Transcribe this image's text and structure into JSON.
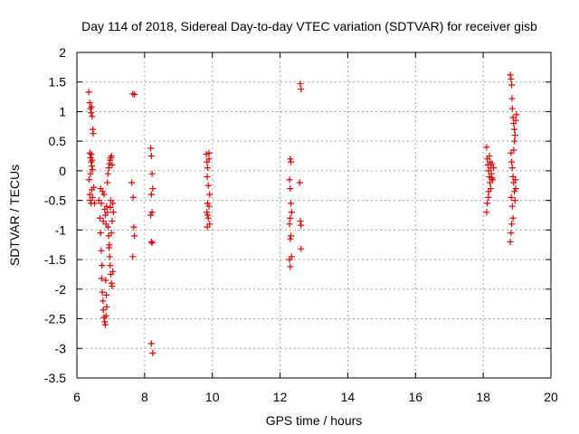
{
  "chart_data": {
    "type": "scatter",
    "title": "Day 114 of 2018, Sidereal Day-to-day VTEC variation (SDTVAR) for receiver gisb",
    "xlabel": "GPS time / hours",
    "ylabel": "SDTVAR / TECUs",
    "xlim": [
      6,
      20
    ],
    "ylim": [
      -3.5,
      2
    ],
    "xticks": [
      "6",
      "8",
      "10",
      "12",
      "14",
      "16",
      "18",
      "20"
    ],
    "yticks": [
      "-3.5",
      "-3",
      "-2.5",
      "-2",
      "-1.5",
      "-1",
      "-0.5",
      "0",
      "0.5",
      "1",
      "1.5",
      "2"
    ],
    "grid": true,
    "marker": "+",
    "series": [
      {
        "name": "SDTVAR",
        "color": "#e00000",
        "points": [
          [
            6.35,
            1.33
          ],
          [
            6.38,
            1.15
          ],
          [
            6.4,
            1.05
          ],
          [
            6.42,
            0.98
          ],
          [
            6.45,
            0.92
          ],
          [
            6.43,
            1.08
          ],
          [
            6.47,
            0.7
          ],
          [
            6.48,
            0.63
          ],
          [
            6.38,
            0.3
          ],
          [
            6.4,
            0.22
          ],
          [
            6.42,
            0.15
          ],
          [
            6.44,
            0.08
          ],
          [
            6.46,
            0.02
          ],
          [
            6.4,
            -0.05
          ],
          [
            6.43,
            0.28
          ],
          [
            6.45,
            0.18
          ],
          [
            6.36,
            -0.15
          ],
          [
            6.38,
            -0.4
          ],
          [
            6.4,
            -0.5
          ],
          [
            6.42,
            -0.55
          ],
          [
            6.44,
            -0.32
          ],
          [
            6.46,
            -0.45
          ],
          [
            6.5,
            -0.28
          ],
          [
            6.52,
            -0.55
          ],
          [
            6.65,
            -0.5
          ],
          [
            6.68,
            -0.8
          ],
          [
            6.7,
            -1.05
          ],
          [
            6.72,
            -1.35
          ],
          [
            6.74,
            -1.6
          ],
          [
            6.73,
            -1.82
          ],
          [
            6.75,
            -2.05
          ],
          [
            6.77,
            -2.2
          ],
          [
            6.78,
            -2.35
          ],
          [
            6.8,
            -2.48
          ],
          [
            6.82,
            -2.55
          ],
          [
            6.84,
            -2.6
          ],
          [
            6.86,
            -2.45
          ],
          [
            6.88,
            -2.3
          ],
          [
            6.7,
            -0.3
          ],
          [
            6.72,
            -0.55
          ],
          [
            6.8,
            -0.4
          ],
          [
            6.82,
            -0.65
          ],
          [
            6.84,
            -0.75
          ],
          [
            6.86,
            -0.9
          ],
          [
            6.88,
            -0.6
          ],
          [
            6.9,
            -0.7
          ],
          [
            6.92,
            -0.95
          ],
          [
            6.94,
            -1.1
          ],
          [
            6.96,
            -1.25
          ],
          [
            6.98,
            -1.6
          ],
          [
            7.0,
            -1.75
          ],
          [
            7.02,
            -1.9
          ],
          [
            7.04,
            -1.95
          ],
          [
            7.06,
            -1.7
          ],
          [
            6.9,
            -0.2
          ],
          [
            6.92,
            -0.05
          ],
          [
            6.94,
            0.05
          ],
          [
            6.96,
            0.12
          ],
          [
            6.98,
            0.18
          ],
          [
            7.0,
            0.22
          ],
          [
            7.02,
            0.25
          ],
          [
            7.04,
            0.1
          ],
          [
            7.06,
            -0.55
          ],
          [
            7.08,
            -0.7
          ],
          [
            7.04,
            -0.85
          ],
          [
            7.02,
            -1.05
          ],
          [
            6.95,
            -1.3
          ],
          [
            6.97,
            -1.45
          ],
          [
            7.0,
            -0.5
          ],
          [
            6.99,
            -0.62
          ],
          [
            6.76,
            -0.35
          ],
          [
            6.78,
            -0.85
          ],
          [
            6.85,
            -1.85
          ],
          [
            6.87,
            -2.1
          ],
          [
            7.65,
            1.3
          ],
          [
            7.7,
            1.29
          ],
          [
            7.62,
            -0.2
          ],
          [
            7.66,
            -0.45
          ],
          [
            7.68,
            -0.95
          ],
          [
            7.7,
            -1.1
          ],
          [
            7.65,
            -1.45
          ],
          [
            8.18,
            0.38
          ],
          [
            8.2,
            0.25
          ],
          [
            8.22,
            -0.05
          ],
          [
            8.24,
            -0.3
          ],
          [
            8.2,
            -0.4
          ],
          [
            8.22,
            -0.7
          ],
          [
            8.18,
            -0.75
          ],
          [
            8.2,
            -1.2
          ],
          [
            8.22,
            -1.22
          ],
          [
            8.2,
            -2.92
          ],
          [
            8.24,
            -3.08
          ],
          [
            9.82,
            0.28
          ],
          [
            9.84,
            0.15
          ],
          [
            9.86,
            0.05
          ],
          [
            9.85,
            -0.1
          ],
          [
            9.88,
            -0.25
          ],
          [
            9.9,
            0.3
          ],
          [
            9.92,
            -0.4
          ],
          [
            9.86,
            -0.55
          ],
          [
            9.84,
            -0.7
          ],
          [
            9.88,
            -0.8
          ],
          [
            9.9,
            -0.6
          ],
          [
            9.92,
            -0.9
          ],
          [
            9.86,
            -0.75
          ],
          [
            9.9,
            0.2
          ],
          [
            9.85,
            -0.95
          ],
          [
            12.3,
            0.2
          ],
          [
            12.32,
            0.15
          ],
          [
            12.28,
            -0.15
          ],
          [
            12.3,
            -0.3
          ],
          [
            12.32,
            -0.55
          ],
          [
            12.34,
            -0.7
          ],
          [
            12.3,
            -0.8
          ],
          [
            12.28,
            -0.9
          ],
          [
            12.32,
            -1.1
          ],
          [
            12.3,
            -1.15
          ],
          [
            12.34,
            -1.45
          ],
          [
            12.28,
            -1.5
          ],
          [
            12.3,
            -1.62
          ],
          [
            12.6,
            1.47
          ],
          [
            12.62,
            1.38
          ],
          [
            12.58,
            -0.2
          ],
          [
            12.6,
            -0.85
          ],
          [
            12.62,
            -0.92
          ],
          [
            12.62,
            -1.32
          ],
          [
            18.1,
            0.4
          ],
          [
            18.12,
            0.2
          ],
          [
            18.14,
            0.1
          ],
          [
            18.16,
            0.0
          ],
          [
            18.18,
            -0.1
          ],
          [
            18.2,
            -0.2
          ],
          [
            18.22,
            -0.3
          ],
          [
            18.15,
            -0.45
          ],
          [
            18.12,
            -0.55
          ],
          [
            18.1,
            -0.7
          ],
          [
            18.2,
            0.15
          ],
          [
            18.22,
            0.05
          ],
          [
            18.24,
            -0.05
          ],
          [
            18.26,
            0.12
          ],
          [
            18.28,
            -0.15
          ],
          [
            18.3,
            0.05
          ],
          [
            18.18,
            0.25
          ],
          [
            18.16,
            -0.35
          ],
          [
            18.25,
            -0.12
          ],
          [
            18.8,
            1.62
          ],
          [
            18.82,
            1.55
          ],
          [
            18.84,
            1.45
          ],
          [
            18.85,
            1.22
          ],
          [
            18.86,
            1.05
          ],
          [
            18.88,
            0.9
          ],
          [
            18.9,
            0.8
          ],
          [
            18.92,
            0.7
          ],
          [
            18.94,
            0.6
          ],
          [
            18.96,
            0.85
          ],
          [
            18.82,
            0.3
          ],
          [
            18.84,
            0.15
          ],
          [
            18.86,
            0.05
          ],
          [
            18.88,
            -0.1
          ],
          [
            18.9,
            -0.2
          ],
          [
            18.92,
            -0.35
          ],
          [
            18.94,
            -0.5
          ],
          [
            18.96,
            -0.3
          ],
          [
            18.86,
            -0.6
          ],
          [
            18.88,
            -0.8
          ],
          [
            18.84,
            -0.9
          ],
          [
            18.82,
            -1.05
          ],
          [
            18.8,
            -1.2
          ],
          [
            18.98,
            0.95
          ],
          [
            18.92,
            0.5
          ],
          [
            18.95,
            -0.15
          ],
          [
            18.9,
            0.35
          ],
          [
            18.83,
            -0.45
          ]
        ]
      }
    ]
  }
}
